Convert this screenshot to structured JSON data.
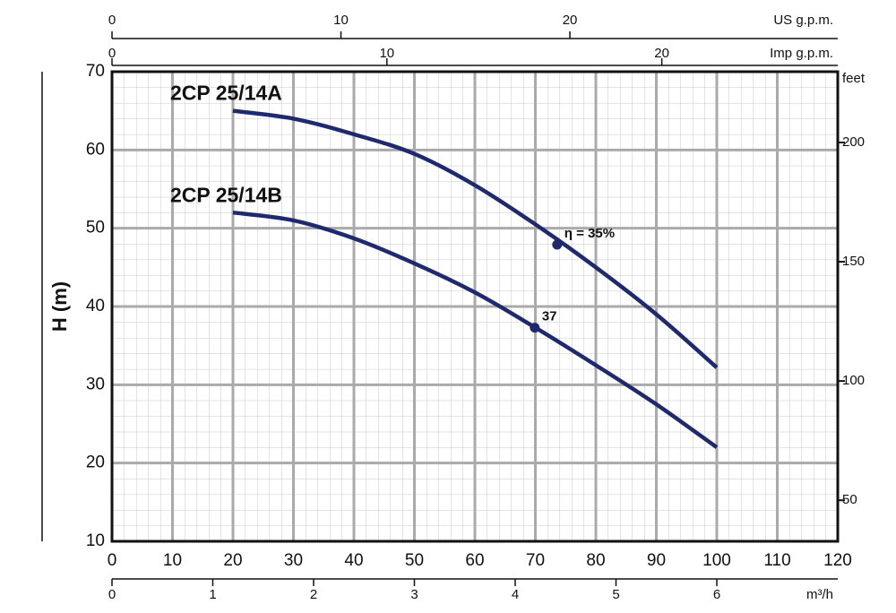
{
  "chart_data": {
    "type": "line",
    "ylabel": "H (m)",
    "xlim": [
      0,
      120
    ],
    "xticks": [
      0,
      10,
      20,
      30,
      40,
      50,
      60,
      70,
      80,
      90,
      100,
      110,
      120
    ],
    "ylim": [
      10,
      70
    ],
    "yticks": [
      10,
      20,
      30,
      40,
      50,
      60,
      70
    ],
    "y2label": "feet",
    "y2lim": [
      32.81,
      229.66
    ],
    "y2ticks": [
      50,
      100,
      150,
      200
    ],
    "us_gpm": {
      "label": "US g.p.m.",
      "lim": [
        0,
        31.7
      ],
      "ticks": [
        0,
        10,
        20
      ]
    },
    "imp_gpm": {
      "label": "Imp g.p.m.",
      "lim": [
        0,
        26.4
      ],
      "ticks": [
        0,
        10,
        20
      ]
    },
    "m3h": {
      "label": "m³/h",
      "lim": [
        0,
        7.2
      ],
      "ticks": [
        0,
        1,
        2,
        3,
        4,
        5,
        6
      ]
    },
    "grid": true,
    "series": [
      {
        "name": "2CP 25/14A",
        "color": "#1f2a6e",
        "x": [
          20,
          30,
          40,
          50,
          60,
          70,
          80,
          90,
          100
        ],
        "values": [
          65,
          64,
          62,
          59.5,
          55.5,
          50.5,
          45,
          39,
          32.2
        ],
        "annotation": {
          "x": 73.6,
          "y": 47.9,
          "label": "η = 35%"
        }
      },
      {
        "name": "2CP 25/14B",
        "color": "#1f2a6e",
        "x": [
          20,
          30,
          40,
          50,
          60,
          70,
          80,
          90,
          100
        ],
        "values": [
          52,
          51,
          48.7,
          45.5,
          41.8,
          37.3,
          32.5,
          27.5,
          22
        ],
        "annotation": {
          "x": 69.9,
          "y": 37.3,
          "label": "37"
        }
      }
    ]
  }
}
